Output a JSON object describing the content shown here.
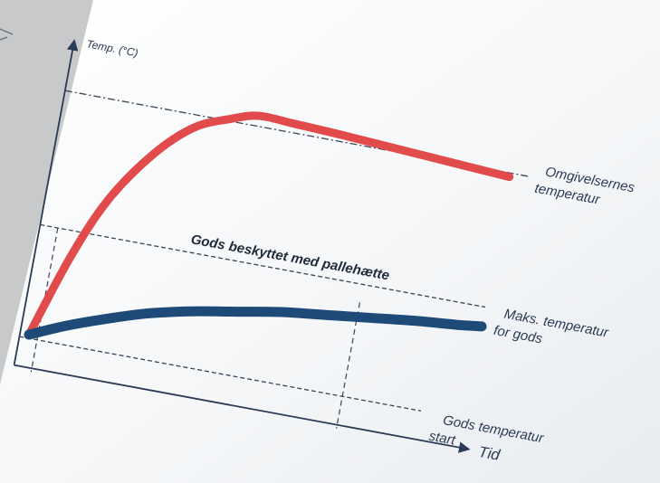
{
  "chart_data": {
    "type": "line",
    "title": "",
    "ylabel": "Temp. (°C)",
    "xlabel": "Tid",
    "grid": false,
    "annotations": {
      "ambient_line": [
        "Omgivelsernes",
        "temperatur"
      ],
      "max_line": [
        "Maks. temperatur",
        "for gods"
      ],
      "start_line": [
        "Gods temperatur",
        "start"
      ],
      "protected_label": "Gods beskyttet med pallehætte"
    },
    "reference_lines": {
      "ambient": 0.94,
      "max_for_goods": 0.42,
      "goods_start": 0.0
    },
    "event_times": [
      0.02,
      0.72
    ],
    "series": [
      {
        "key": "unprotected",
        "color": "#e14b4c",
        "x": [
          0.0,
          0.06,
          0.12,
          0.2,
          0.28,
          0.36,
          0.42,
          0.5,
          0.62,
          0.76,
          0.9,
          1.0
        ],
        "y": [
          0.0,
          0.32,
          0.56,
          0.76,
          0.89,
          0.95,
          0.98,
          0.975,
          0.965,
          0.95,
          0.935,
          0.925
        ]
      },
      {
        "key": "protected",
        "color": "#1e4a78",
        "x": [
          0.0,
          0.08,
          0.16,
          0.25,
          0.35,
          0.45,
          0.55,
          0.65,
          0.75,
          0.85,
          0.95,
          1.0
        ],
        "y": [
          0.0,
          0.06,
          0.11,
          0.16,
          0.2,
          0.23,
          0.26,
          0.28,
          0.3,
          0.32,
          0.335,
          0.345
        ]
      }
    ]
  }
}
